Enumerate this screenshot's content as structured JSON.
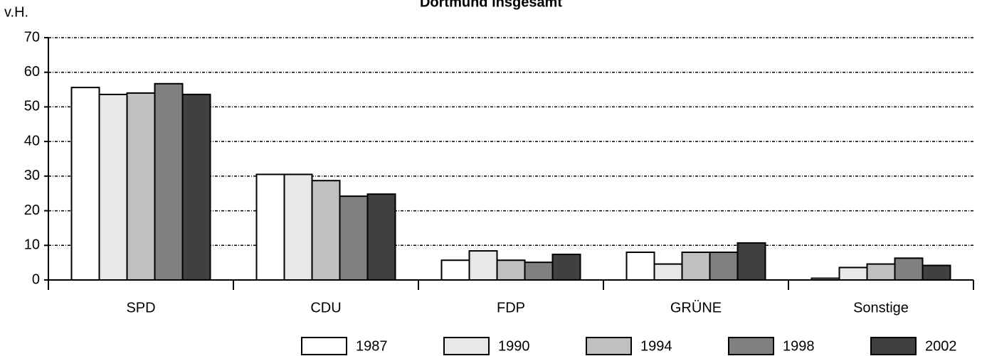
{
  "chart_data": {
    "type": "bar",
    "title": "Dortmund insgesamt",
    "y_label": "v.H.",
    "categories": [
      "SPD",
      "CDU",
      "FDP",
      "GRÜNE",
      "Sonstige"
    ],
    "series": [
      {
        "name": "1987",
        "color": "#ffffff",
        "values": [
          55.6,
          30.5,
          5.7,
          8.0,
          0.5
        ]
      },
      {
        "name": "1990",
        "color": "#e8e8e8",
        "values": [
          53.6,
          30.5,
          8.4,
          4.6,
          3.6
        ]
      },
      {
        "name": "1994",
        "color": "#c0c0c0",
        "values": [
          54.0,
          28.7,
          5.7,
          8.0,
          4.6
        ]
      },
      {
        "name": "1998",
        "color": "#808080",
        "values": [
          56.7,
          24.2,
          5.1,
          8.0,
          6.3
        ]
      },
      {
        "name": "2002",
        "color": "#404040",
        "values": [
          53.6,
          24.8,
          7.4,
          10.7,
          4.2
        ]
      }
    ],
    "ylim": [
      0,
      70
    ],
    "yticks": [
      0,
      10,
      20,
      30,
      40,
      50,
      60,
      70
    ],
    "grid": true,
    "legend": "bottom"
  }
}
